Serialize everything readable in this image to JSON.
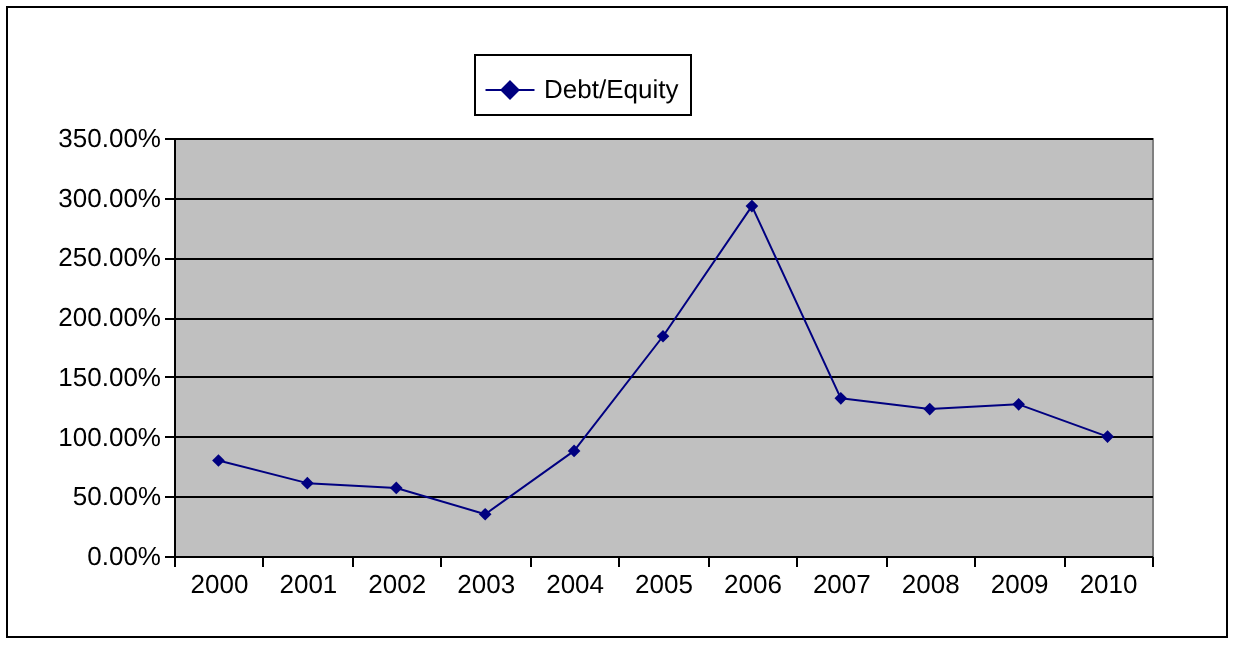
{
  "chart_data": {
    "type": "line",
    "categories": [
      "2000",
      "2001",
      "2002",
      "2003",
      "2004",
      "2005",
      "2006",
      "2007",
      "2008",
      "2009",
      "2010"
    ],
    "series": [
      {
        "name": "Debt/Equity",
        "color": "#000080",
        "values": [
          80,
          61,
          57,
          35,
          88,
          184,
          293,
          132,
          123,
          127,
          100
        ]
      }
    ],
    "ylim": [
      0,
      350
    ],
    "yticks": [
      {
        "value": 0,
        "label": "0.00%"
      },
      {
        "value": 50,
        "label": "50.00%"
      },
      {
        "value": 100,
        "label": "100.00%"
      },
      {
        "value": 150,
        "label": "150.00%"
      },
      {
        "value": 200,
        "label": "200.00%"
      },
      {
        "value": 250,
        "label": "250.00%"
      },
      {
        "value": 300,
        "label": "300.00%"
      },
      {
        "value": 350,
        "label": "350.00%"
      }
    ],
    "grid": "y",
    "legend": "top",
    "marker": "diamond",
    "line_style": "solid"
  }
}
